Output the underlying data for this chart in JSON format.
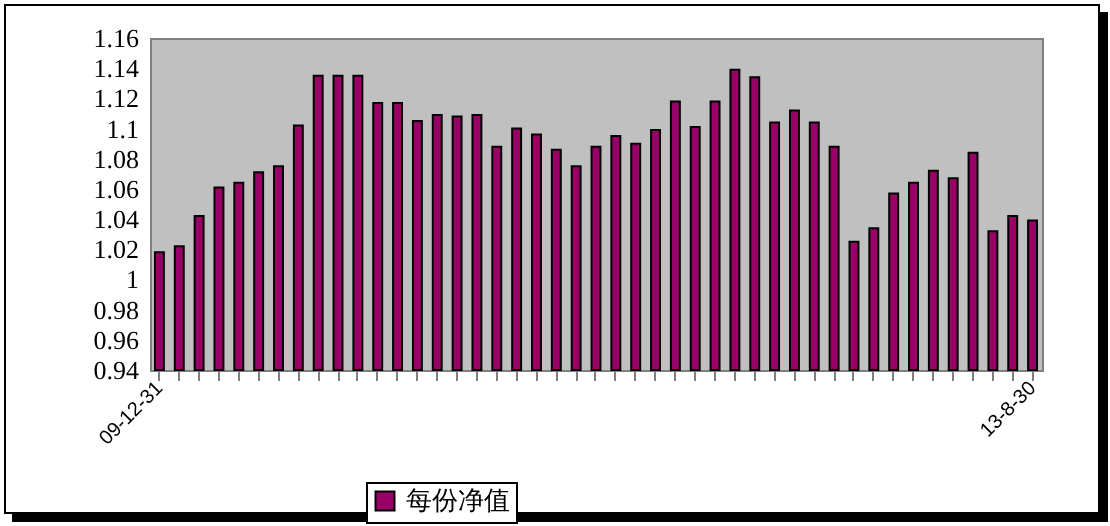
{
  "chart_data": {
    "type": "bar",
    "categories": [
      "09-12-31",
      null,
      null,
      null,
      null,
      null,
      null,
      null,
      null,
      null,
      null,
      null,
      null,
      null,
      null,
      null,
      null,
      null,
      null,
      null,
      null,
      null,
      null,
      null,
      null,
      null,
      null,
      null,
      null,
      null,
      null,
      null,
      null,
      null,
      null,
      null,
      null,
      null,
      null,
      null,
      null,
      null,
      null,
      null,
      "13-8-30"
    ],
    "series": [
      {
        "name": "每份净值",
        "color": "#990066",
        "values": [
          1.018,
          1.022,
          1.042,
          1.061,
          1.064,
          1.071,
          1.075,
          1.102,
          1.135,
          1.135,
          1.135,
          1.117,
          1.117,
          1.105,
          1.109,
          1.108,
          1.109,
          1.088,
          1.1,
          1.096,
          1.086,
          1.075,
          1.088,
          1.095,
          1.09,
          1.099,
          1.118,
          1.101,
          1.118,
          1.139,
          1.134,
          1.104,
          1.112,
          1.104,
          1.088,
          1.025,
          1.034,
          1.057,
          1.064,
          1.072,
          1.067,
          1.084,
          1.032,
          1.042,
          1.039
        ]
      }
    ],
    "ylim": [
      0.94,
      1.16
    ],
    "yticks": [
      0.94,
      0.96,
      0.98,
      1,
      1.02,
      1.04,
      1.06,
      1.08,
      1.1,
      1.12,
      1.14,
      1.16
    ],
    "grid": false,
    "legend": "bottom"
  }
}
